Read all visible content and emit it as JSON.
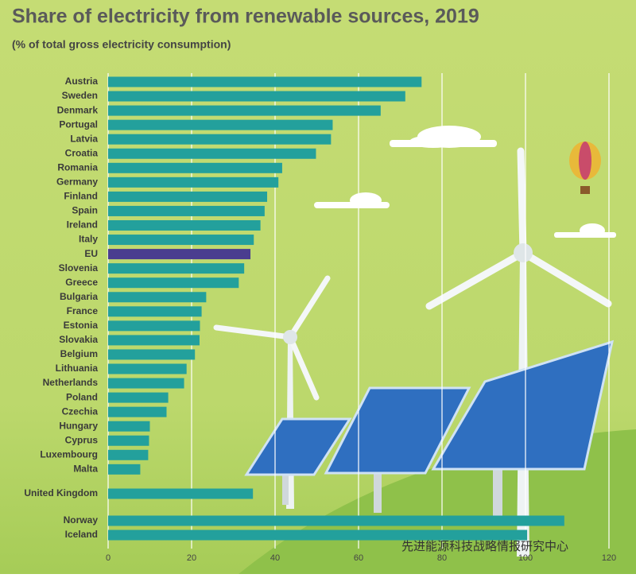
{
  "chart_data": {
    "type": "bar",
    "orientation": "horizontal",
    "title": "Share of electricity from renewable sources, 2019",
    "subtitle": "(% of total gross electricity consumption)",
    "categories": [
      "Austria",
      "Sweden",
      "Denmark",
      "Portugal",
      "Latvia",
      "Croatia",
      "Romania",
      "Germany",
      "Finland",
      "Spain",
      "Ireland",
      "Italy",
      "EU",
      "Slovenia",
      "Greece",
      "Bulgaria",
      "France",
      "Estonia",
      "Slovakia",
      "Belgium",
      "Lithuania",
      "Netherlands",
      "Poland",
      "Czechia",
      "Hungary",
      "Cyprus",
      "Luxembourg",
      "Malta",
      "United Kingdom",
      "Norway",
      "Iceland"
    ],
    "values": [
      75.1,
      71.2,
      65.3,
      53.8,
      53.4,
      49.8,
      41.7,
      40.8,
      38.1,
      37.5,
      36.5,
      34.9,
      34.1,
      32.6,
      31.3,
      23.5,
      22.4,
      22.0,
      21.9,
      20.8,
      18.8,
      18.2,
      14.4,
      14.0,
      10.0,
      9.8,
      9.6,
      7.7,
      34.7,
      109.3,
      100.4
    ],
    "color": "#23a09c",
    "highlight": {
      "category": "EU",
      "color": "#4a3d8f"
    },
    "xlim": [
      0,
      120
    ],
    "xticks": [
      0,
      20,
      40,
      60,
      80,
      100,
      120
    ],
    "grid": true,
    "watermark": "先进能源科技战略情报研究中心"
  }
}
